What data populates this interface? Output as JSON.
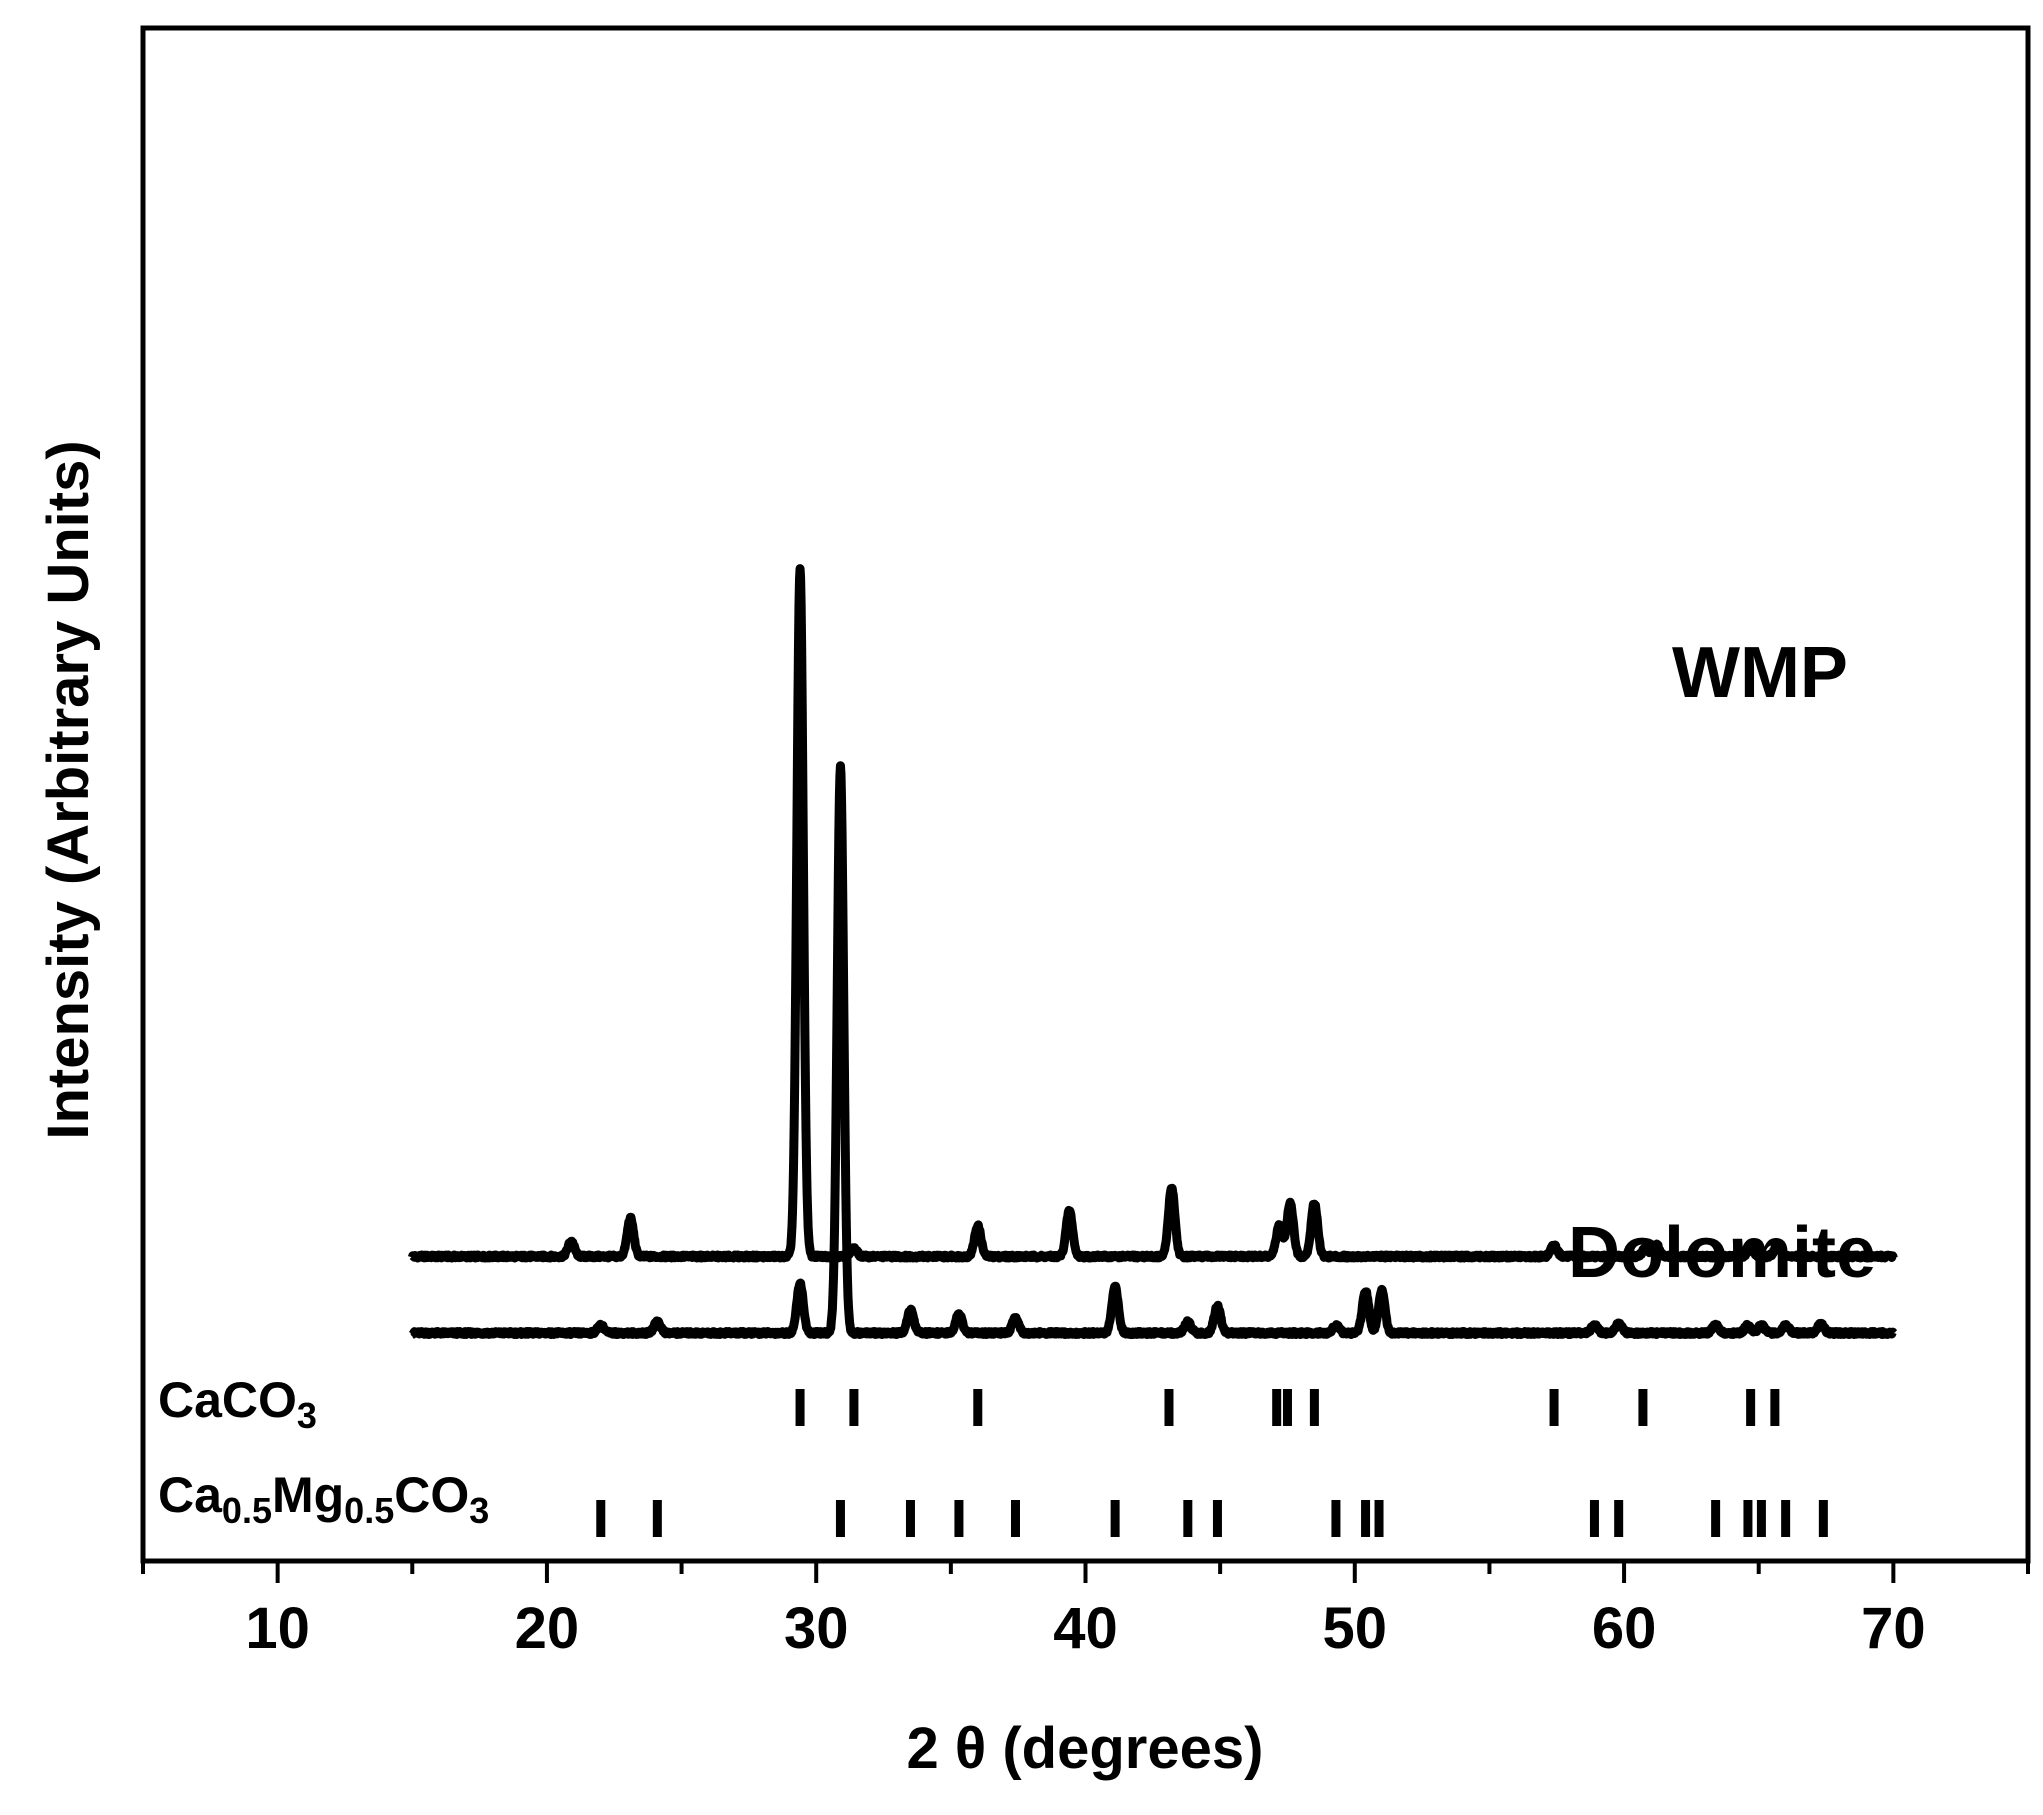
{
  "chart_data": {
    "type": "line",
    "title": "",
    "xlabel": "2 θ (degrees)",
    "ylabel": "Intensity (Arbitrary Units)",
    "xlim": [
      5,
      75
    ],
    "x_ticks": [
      10,
      20,
      30,
      40,
      50,
      60,
      70
    ],
    "y_ticks_shown": false,
    "grid": false,
    "series": [
      {
        "name": "WMP",
        "x_range": [
          15,
          70
        ],
        "baseline": 0.1,
        "peaks": [
          {
            "x": 20.9,
            "h": 0.12
          },
          {
            "x": 23.1,
            "h": 0.15
          },
          {
            "x": 29.4,
            "h": 1.0
          },
          {
            "x": 31.4,
            "h": 0.11
          },
          {
            "x": 36.0,
            "h": 0.14
          },
          {
            "x": 39.4,
            "h": 0.16
          },
          {
            "x": 43.2,
            "h": 0.19
          },
          {
            "x": 47.2,
            "h": 0.14
          },
          {
            "x": 47.6,
            "h": 0.17
          },
          {
            "x": 48.5,
            "h": 0.17
          },
          {
            "x": 57.4,
            "h": 0.115
          },
          {
            "x": 60.8,
            "h": 0.11
          },
          {
            "x": 61.2,
            "h": 0.115
          },
          {
            "x": 64.7,
            "h": 0.11
          },
          {
            "x": 65.7,
            "h": 0.115
          }
        ]
      },
      {
        "name": "Dolomite",
        "x_range": [
          15,
          70
        ],
        "baseline": 0.0,
        "peaks": [
          {
            "x": 22.0,
            "h": 0.01
          },
          {
            "x": 24.1,
            "h": 0.015
          },
          {
            "x": 29.4,
            "h": 0.065
          },
          {
            "x": 30.9,
            "h": 0.74
          },
          {
            "x": 33.5,
            "h": 0.03
          },
          {
            "x": 35.3,
            "h": 0.025
          },
          {
            "x": 37.4,
            "h": 0.02
          },
          {
            "x": 41.1,
            "h": 0.06
          },
          {
            "x": 43.8,
            "h": 0.015
          },
          {
            "x": 44.9,
            "h": 0.035
          },
          {
            "x": 49.3,
            "h": 0.01
          },
          {
            "x": 50.4,
            "h": 0.055
          },
          {
            "x": 51.0,
            "h": 0.055
          },
          {
            "x": 58.9,
            "h": 0.01
          },
          {
            "x": 59.8,
            "h": 0.012
          },
          {
            "x": 63.4,
            "h": 0.01
          },
          {
            "x": 64.6,
            "h": 0.01
          },
          {
            "x": 65.1,
            "h": 0.01
          },
          {
            "x": 66.0,
            "h": 0.01
          },
          {
            "x": 67.3,
            "h": 0.012
          }
        ]
      }
    ],
    "reference_patterns": [
      {
        "label_main": "CaCO",
        "label_subs": [
          "3"
        ],
        "positions": [
          29.4,
          31.4,
          36.0,
          43.1,
          47.1,
          47.5,
          48.5,
          57.4,
          60.7,
          64.7,
          65.6
        ]
      },
      {
        "label_main": "Ca",
        "label_subs": [
          "0.5",
          "Mg",
          "0.5",
          "CO",
          "3"
        ],
        "positions": [
          22.0,
          24.1,
          30.9,
          33.5,
          35.3,
          37.4,
          41.1,
          43.8,
          44.9,
          49.3,
          50.4,
          50.9,
          58.9,
          59.8,
          63.4,
          64.6,
          65.1,
          66.0,
          67.4
        ]
      }
    ]
  }
}
